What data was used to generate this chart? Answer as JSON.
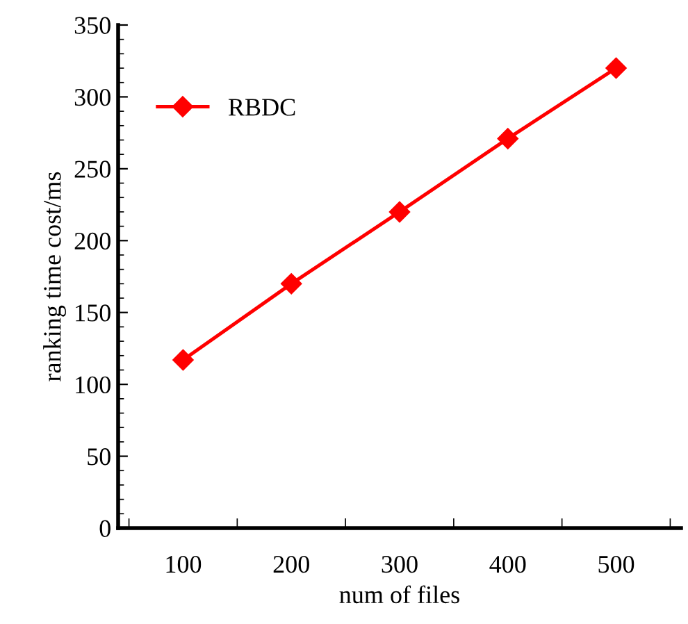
{
  "chart_data": {
    "type": "line",
    "xlabel": "num of files",
    "ylabel": "ranking time cost/ms",
    "categories": [
      "100",
      "200",
      "300",
      "400",
      "500"
    ],
    "series": [
      {
        "name": "RBDC",
        "color": "#ff0000",
        "values": [
          117,
          170,
          220,
          271,
          320
        ]
      }
    ],
    "ylim": [
      0,
      350
    ],
    "yticks": [
      0,
      50,
      100,
      150,
      200,
      250,
      300,
      350
    ],
    "marker": "diamond",
    "line_style": "solid",
    "grid": false,
    "legend": "top left"
  }
}
